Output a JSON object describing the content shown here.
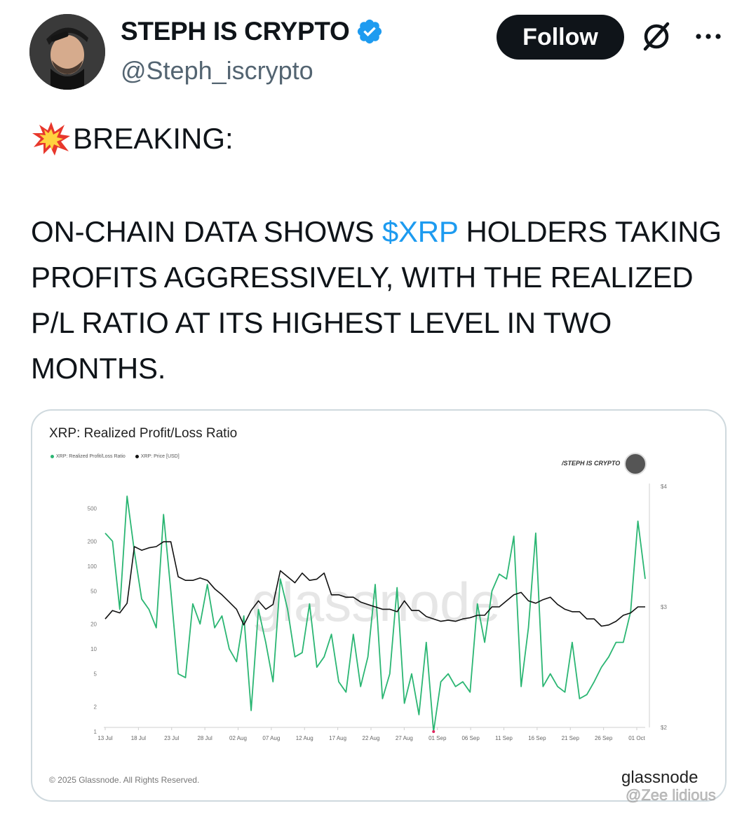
{
  "post": {
    "author_name": "STEPH IS CRYPTO",
    "handle": "@Steph_iscrypto",
    "follow_label": "Follow",
    "breaking": "BREAKING:",
    "text_before": "ON-CHAIN DATA SHOWS ",
    "cashtag": "$XRP",
    "text_after": " HOLDERS TAKING PROFITS AGGRESSIVELY, WITH THE REALIZED P/L RATIO AT ITS HIGHEST LEVEL IN TWO MONTHS.",
    "share_watermark": "@Zee lidious",
    "accent_color": "#1d9bf0"
  },
  "icons": {
    "verified": "verified-badge-icon",
    "grok": "grok-icon",
    "more": "more-icon",
    "breaking": "collision-emoji-icon"
  },
  "chart_card": {
    "chart_watermark": "/STEPH IS CRYPTO",
    "copyright": "© 2025 Glassnode. All Rights Reserved.",
    "brand": "glassnode",
    "background_watermark": "glassnode"
  },
  "chart_data": {
    "type": "line",
    "title": "XRP: Realized Profit/Loss Ratio",
    "legend": [
      "XRP: Realized Profit/Loss Ratio",
      "XRP: Price [USD]"
    ],
    "x_ticks": [
      "13 Jul",
      "18 Jul",
      "23 Jul",
      "28 Jul",
      "02 Aug",
      "07 Aug",
      "12 Aug",
      "17 Aug",
      "22 Aug",
      "27 Aug",
      "01 Sep",
      "06 Sep",
      "11 Sep",
      "16 Sep",
      "21 Sep",
      "26 Sep",
      "01 Oct"
    ],
    "y_left_ticks": [
      "500",
      "200",
      "100",
      "50",
      "20",
      "10",
      "5",
      "2",
      "1"
    ],
    "y_left_tick_values": [
      500,
      200,
      100,
      50,
      20,
      10,
      5,
      2,
      1
    ],
    "y_left_scale": "log",
    "y_right_ticks": [
      "$4",
      "$3",
      "$2"
    ],
    "y_right_tick_values": [
      4,
      3,
      2
    ],
    "grid": false,
    "series_colors": [
      "#2bb673",
      "#111111"
    ],
    "series": [
      {
        "name": "XRP: Realized Profit/Loss Ratio",
        "values": [
          250,
          200,
          30,
          700,
          150,
          40,
          30,
          18,
          420,
          50,
          5,
          4.5,
          35,
          20,
          60,
          18,
          25,
          10,
          7,
          25,
          1.8,
          30,
          12,
          4,
          70,
          30,
          8,
          9,
          35,
          6,
          8,
          15,
          4,
          3,
          15,
          3.5,
          8,
          60,
          2.5,
          5,
          55,
          2.2,
          5,
          1.6,
          12,
          1,
          4,
          5,
          3.5,
          4,
          3,
          35,
          12,
          50,
          80,
          70,
          230,
          3.5,
          18,
          250,
          3.5,
          5,
          3.5,
          3,
          12,
          2.5,
          2.8,
          4,
          6,
          8,
          12,
          12,
          28,
          350,
          70
        ]
      },
      {
        "name": "XRP: Price [USD]",
        "values": [
          2.9,
          2.97,
          2.95,
          3.03,
          3.5,
          3.47,
          3.49,
          3.5,
          3.54,
          3.54,
          3.25,
          3.22,
          3.22,
          3.24,
          3.22,
          3.15,
          3.1,
          3.04,
          2.98,
          2.85,
          2.97,
          3.05,
          2.98,
          3.02,
          3.3,
          3.25,
          3.2,
          3.28,
          3.22,
          3.23,
          3.28,
          3.1,
          3.1,
          3.08,
          3.08,
          3.04,
          3.02,
          3.0,
          2.98,
          2.98,
          2.96,
          3.05,
          2.97,
          2.97,
          2.92,
          2.9,
          2.88,
          2.89,
          2.88,
          2.9,
          2.91,
          2.93,
          2.93,
          3.0,
          3.0,
          3.05,
          3.1,
          3.12,
          3.05,
          3.03,
          3.06,
          3.08,
          3.02,
          2.98,
          2.96,
          2.96,
          2.9,
          2.9,
          2.84,
          2.85,
          2.88,
          2.93,
          2.95,
          3.0,
          3.0
        ]
      }
    ]
  }
}
